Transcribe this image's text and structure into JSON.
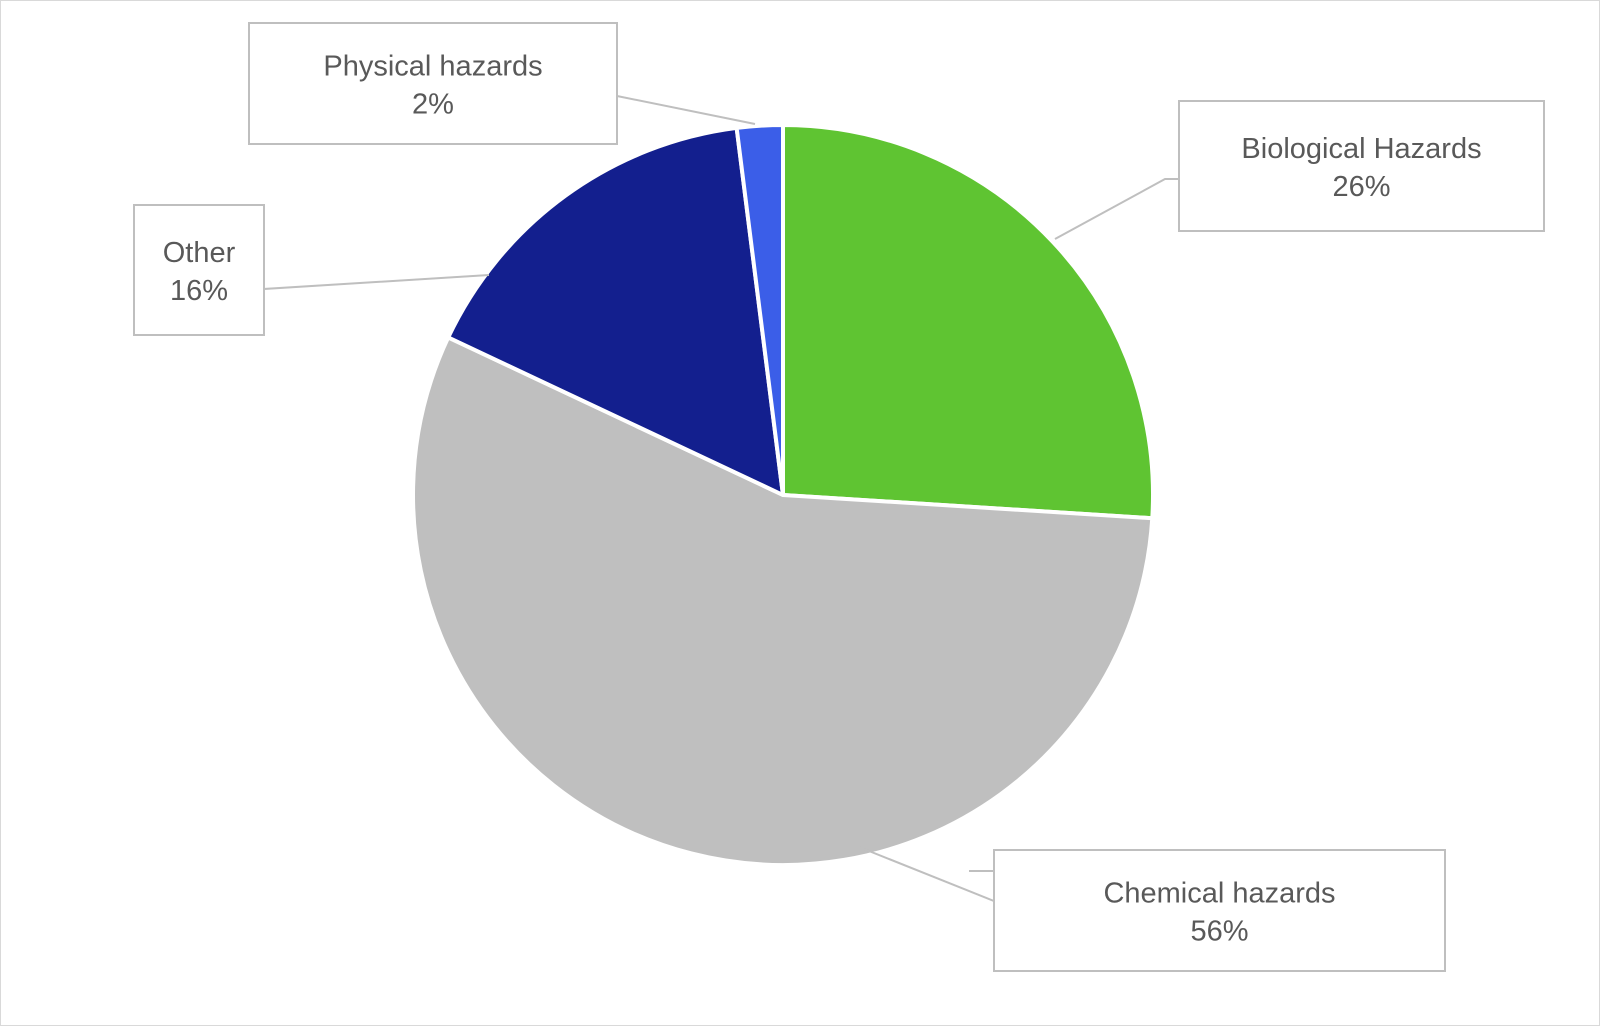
{
  "chart_data": {
    "type": "pie",
    "start_angle_deg": 0,
    "direction": "clockwise",
    "slices": [
      {
        "label": "Biological Hazards",
        "value": 26,
        "value_label": "26%",
        "color": "#5fc432"
      },
      {
        "label": "Chemical hazards",
        "value": 56,
        "value_label": "56%",
        "color": "#bfbfbf"
      },
      {
        "label": "Other",
        "value": 16,
        "value_label": "16%",
        "color": "#131f8e"
      },
      {
        "label": "Physical hazards",
        "value": 2,
        "value_label": "2%",
        "color": "#3b5ee8"
      }
    ],
    "legend": "none",
    "data_labels": "callout boxes with leader lines"
  }
}
